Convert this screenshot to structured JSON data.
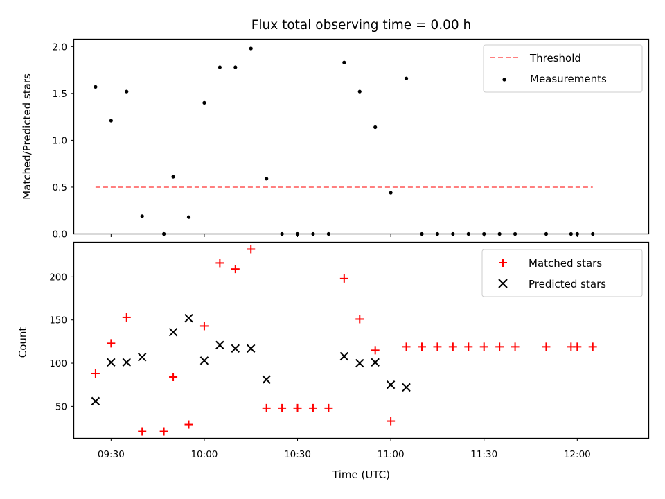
{
  "chart_data": [
    {
      "type": "scatter",
      "title": "Flux total observing time = 0.00 h",
      "xlabel": "",
      "ylabel": "Matched/Predicted stars",
      "ylim": [
        0,
        2.08
      ],
      "yticks": [
        "0.0",
        "0.5",
        "1.0",
        "1.5",
        "2.0"
      ],
      "legend_position": "top-right",
      "threshold": {
        "name": "Threshold",
        "value": 0.5,
        "x_start": "09:25",
        "x_end": "12:05",
        "color": "#ff7f7f",
        "style": "dashed"
      },
      "series": [
        {
          "name": "Measurements",
          "color": "#000000",
          "marker": "dot",
          "x": [
            "09:25",
            "09:30",
            "09:35",
            "09:40",
            "09:47",
            "09:50",
            "09:55",
            "10:00",
            "10:05",
            "10:10",
            "10:15",
            "10:20",
            "10:25",
            "10:30",
            "10:35",
            "10:40",
            "10:45",
            "10:50",
            "10:55",
            "11:00",
            "11:05",
            "11:10",
            "11:15",
            "11:20",
            "11:25",
            "11:30",
            "11:35",
            "11:40",
            "11:50",
            "11:58",
            "12:00",
            "12:05"
          ],
          "y": [
            1.57,
            1.21,
            1.52,
            0.19,
            0.0,
            0.61,
            0.18,
            1.4,
            1.78,
            1.78,
            1.98,
            0.59,
            0.0,
            0.0,
            0.0,
            0.0,
            1.83,
            1.52,
            1.14,
            0.44,
            1.66,
            0.0,
            0.0,
            0.0,
            0.0,
            0.0,
            0.0,
            0.0,
            0.0,
            0.0,
            0.0,
            0.0
          ]
        }
      ]
    },
    {
      "type": "scatter",
      "title": "",
      "xlabel": "Time (UTC)",
      "ylabel": "Count",
      "ylim": [
        13,
        240
      ],
      "yticks": [
        "50",
        "100",
        "150",
        "200"
      ],
      "xticks": [
        "09:30",
        "10:00",
        "10:30",
        "11:00",
        "11:30",
        "12:00"
      ],
      "xlim": [
        "09:18",
        "12:23"
      ],
      "legend_position": "top-right",
      "series": [
        {
          "name": "Matched stars",
          "color": "#ff0000",
          "marker": "plus",
          "x": [
            "09:25",
            "09:30",
            "09:35",
            "09:40",
            "09:47",
            "09:50",
            "09:55",
            "10:00",
            "10:05",
            "10:10",
            "10:15",
            "10:20",
            "10:25",
            "10:30",
            "10:35",
            "10:40",
            "10:45",
            "10:50",
            "10:55",
            "11:00",
            "11:05",
            "11:10",
            "11:15",
            "11:20",
            "11:25",
            "11:30",
            "11:35",
            "11:40",
            "11:50",
            "11:58",
            "12:00",
            "12:05"
          ],
          "y": [
            88,
            123,
            153,
            21,
            21,
            84,
            29,
            143,
            216,
            209,
            232,
            48,
            48,
            48,
            48,
            48,
            198,
            151,
            115,
            33,
            119,
            119,
            119,
            119,
            119,
            119,
            119,
            119,
            119,
            119,
            119,
            119
          ]
        },
        {
          "name": "Predicted stars",
          "color": "#000000",
          "marker": "x",
          "x": [
            "09:25",
            "09:30",
            "09:35",
            "09:40",
            "09:50",
            "09:55",
            "10:00",
            "10:05",
            "10:10",
            "10:15",
            "10:20",
            "10:45",
            "10:50",
            "10:55",
            "11:00",
            "11:05"
          ],
          "y": [
            56,
            101,
            101,
            107,
            136,
            152,
            103,
            121,
            117,
            117,
            81,
            108,
            100,
            101,
            75,
            72
          ]
        }
      ]
    }
  ]
}
